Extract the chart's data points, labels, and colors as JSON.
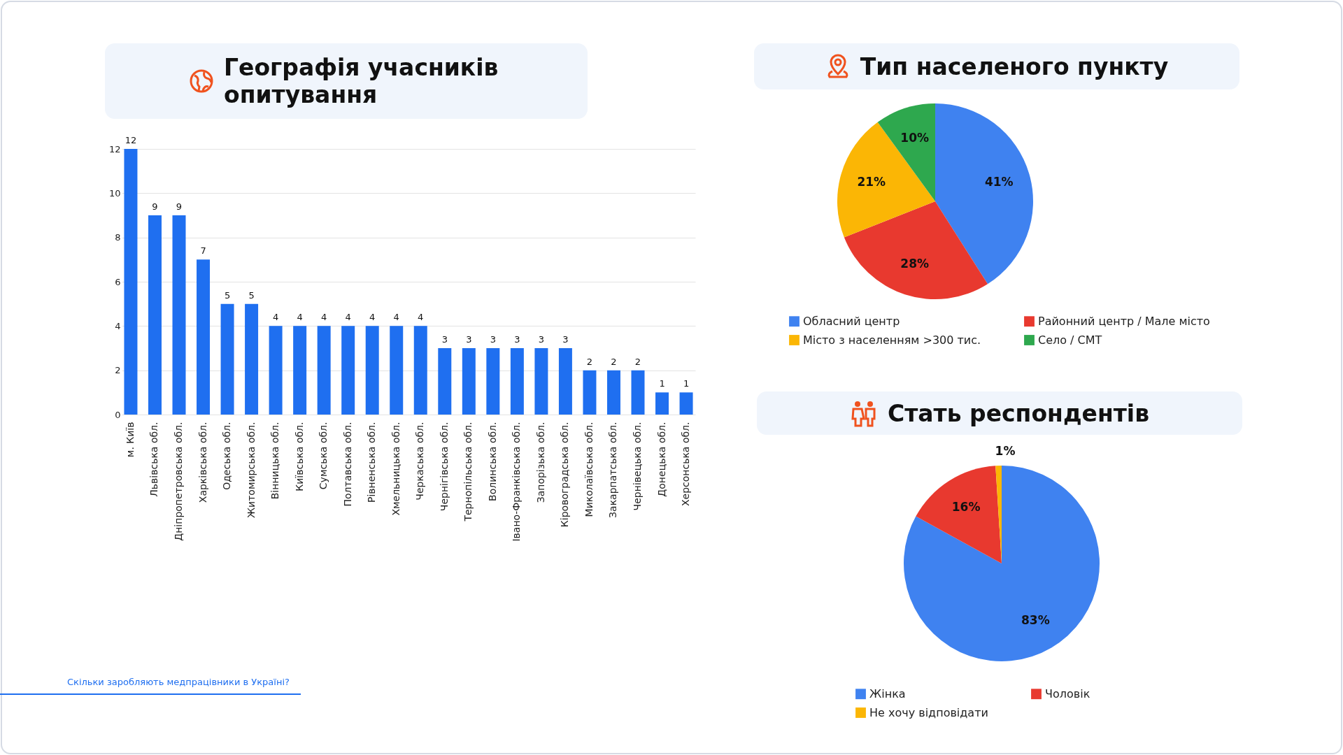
{
  "chart_data": [
    {
      "type": "bar",
      "title": "Географія учасників опитування",
      "categories": [
        "м. Київ",
        "Львівська обл.",
        "Дніпропетровська обл.",
        "Харківська обл.",
        "Одеська обл.",
        "Житомирська обл.",
        "Вінницька обл.",
        "Київська обл.",
        "Сумська обл.",
        "Полтавська обл.",
        "Рівненська обл.",
        "Хмельницька обл.",
        "Черкаська обл.",
        "Чернігівська обл.",
        "Тернопільська обл.",
        "Волинська обл.",
        "Івано-Франківська обл.",
        "Запорізька обл.",
        "Кіровоградська обл.",
        "Миколаївська обл.",
        "Закарпатська обл.",
        "Чернівецька обл.",
        "Донецька обл.",
        "Херсонська обл."
      ],
      "values": [
        12,
        9,
        9,
        7,
        5,
        5,
        4,
        4,
        4,
        4,
        4,
        4,
        4,
        3,
        3,
        3,
        3,
        3,
        3,
        2,
        2,
        2,
        1,
        1
      ],
      "color": "#1f6ff0",
      "ylim": [
        0,
        12
      ],
      "yticks": [
        0,
        2,
        4,
        6,
        8,
        10,
        12
      ],
      "grid": "y",
      "data_labels": true,
      "annotations": [
        "Скільки заробляють медпрацівники в Україні?"
      ]
    },
    {
      "type": "pie",
      "title": "Тип населеного пункту",
      "categories": [
        "Обласний центр",
        "Районний центр / Мале місто",
        "Місто з населенням >300 тис.",
        "Село / СМТ"
      ],
      "values": [
        41,
        28,
        21,
        10
      ],
      "colors": [
        "#3f82f0",
        "#e8392f",
        "#fbb605",
        "#2ea84e"
      ],
      "value_labels": [
        "41%",
        "28%",
        "21%",
        "10%"
      ],
      "legend": "bottom"
    },
    {
      "type": "pie",
      "title": "Стать респондентів",
      "categories": [
        "Жінка",
        "Чоловік",
        "Не хочу відповідати"
      ],
      "values": [
        83,
        16,
        1
      ],
      "colors": [
        "#3f82f0",
        "#e8392f",
        "#fbb605"
      ],
      "value_labels": [
        "83%",
        "16%",
        "1%"
      ],
      "legend": "bottom"
    }
  ]
}
